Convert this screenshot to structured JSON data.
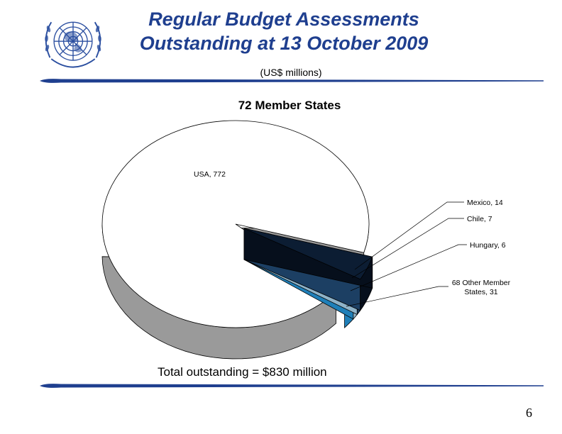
{
  "slide": {
    "title_line1": "Regular Budget Assessments",
    "title_line2": "Outstanding at 13 October 2009",
    "subtitle": "(US$ millions)",
    "total_text": "Total outstanding = $830 million",
    "page_number": "6"
  },
  "logo": {
    "name": "un-emblem"
  },
  "colors": {
    "title": "#1f3f8f",
    "usa": "#ffffff",
    "mexico": "#29a3e8",
    "chile": "#b9dbef",
    "hungary": "#2a5b8c",
    "others": "#0c1d33",
    "rule": "#1f3f8f"
  },
  "chart_data": {
    "type": "pie",
    "title": "72 Member States",
    "categories": [
      "USA",
      "Mexico",
      "Chile",
      "Hungary",
      "68 Other Member States"
    ],
    "values": [
      772,
      14,
      7,
      6,
      31
    ],
    "labels": [
      "USA, 772",
      "Mexico, 14",
      "Chile, 7",
      "Hungary, 6",
      "68 Other Member States, 31"
    ],
    "total": 830,
    "style": "3d-exploded"
  }
}
